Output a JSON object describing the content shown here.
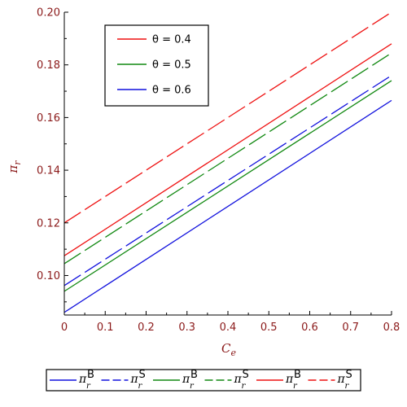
{
  "chart_data": {
    "type": "line",
    "xlabel": "C",
    "xlabel_sub": "e",
    "ylabel": "π",
    "ylabel_sub": "r",
    "xlim": [
      0,
      0.8
    ],
    "ylim": [
      0.085,
      0.2
    ],
    "x_ticks": [
      "0",
      "0.1",
      "0.2",
      "0.3",
      "0.4",
      "0.5",
      "0.6",
      "0.7",
      "0.8"
    ],
    "y_ticks": [
      "0.10",
      "0.12",
      "0.14",
      "0.16",
      "0.18",
      "0.20"
    ],
    "grid": false,
    "theta_legend": {
      "position": "top-left",
      "entries": [
        {
          "label": "θ = 0.4",
          "color": "#ee1111"
        },
        {
          "label": "θ = 0.5",
          "color": "#118811"
        },
        {
          "label": "θ = 0.6",
          "color": "#1111dd"
        }
      ]
    },
    "series_legend": {
      "position": "bottom",
      "entries": [
        {
          "base": "π",
          "sub": "r",
          "sup": "B",
          "color": "#1111dd",
          "dash": "solid"
        },
        {
          "base": "π",
          "sub": "r",
          "sup": "S",
          "color": "#1111dd",
          "dash": "dashed"
        },
        {
          "base": "π",
          "sub": "r",
          "sup": "B",
          "color": "#118811",
          "dash": "solid"
        },
        {
          "base": "π",
          "sub": "r",
          "sup": "S",
          "color": "#118811",
          "dash": "dashed"
        },
        {
          "base": "π",
          "sub": "r",
          "sup": "B",
          "color": "#ee1111",
          "dash": "solid"
        },
        {
          "base": "π",
          "sub": "r",
          "sup": "S",
          "color": "#ee1111",
          "dash": "dashed"
        }
      ]
    },
    "series": [
      {
        "theta": "0.4",
        "kind": "B",
        "color": "#ee1111",
        "dash": "solid",
        "x": [
          0,
          0.8
        ],
        "y": [
          0.1075,
          0.188
        ]
      },
      {
        "theta": "0.4",
        "kind": "S",
        "color": "#ee1111",
        "dash": "dashed",
        "x": [
          0,
          0.8
        ],
        "y": [
          0.12,
          0.2
        ]
      },
      {
        "theta": "0.5",
        "kind": "B",
        "color": "#118811",
        "dash": "solid",
        "x": [
          0,
          0.8
        ],
        "y": [
          0.094,
          0.174
        ]
      },
      {
        "theta": "0.5",
        "kind": "S",
        "color": "#118811",
        "dash": "dashed",
        "x": [
          0,
          0.8
        ],
        "y": [
          0.1045,
          0.1845
        ]
      },
      {
        "theta": "0.6",
        "kind": "B",
        "color": "#1111dd",
        "dash": "solid",
        "x": [
          0,
          0.8
        ],
        "y": [
          0.086,
          0.1665
        ]
      },
      {
        "theta": "0.6",
        "kind": "S",
        "color": "#1111dd",
        "dash": "dashed",
        "x": [
          0,
          0.8
        ],
        "y": [
          0.0962,
          0.176
        ]
      }
    ]
  }
}
